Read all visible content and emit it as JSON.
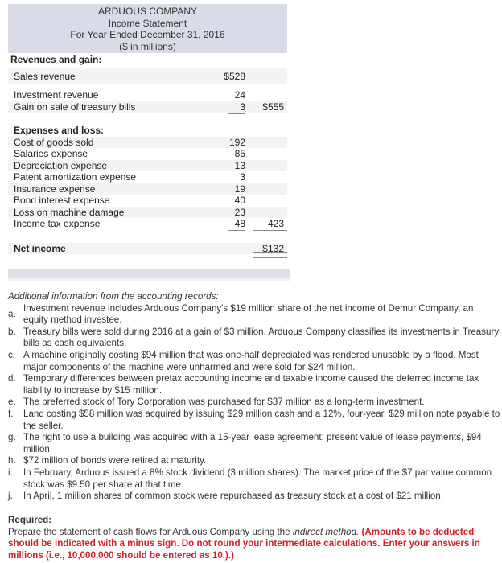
{
  "statement": {
    "company": "ARDUOUS COMPANY",
    "title": "Income Statement",
    "period": "For Year Ended December 31, 2016",
    "units": "($ in millions)",
    "revenues_heading": "Revenues and gain:",
    "revenues": [
      {
        "label": "Sales revenue",
        "v1": "$528",
        "v2": ""
      },
      {
        "label": "Investment revenue",
        "v1": "24",
        "v2": ""
      },
      {
        "label": "Gain on sale of treasury bills",
        "v1": "3",
        "v2": "$555"
      }
    ],
    "expenses_heading": "Expenses and loss:",
    "expenses": [
      {
        "label": "Cost of goods sold",
        "v1": "192",
        "v2": ""
      },
      {
        "label": "Salaries expense",
        "v1": "85",
        "v2": ""
      },
      {
        "label": "Depreciation expense",
        "v1": "13",
        "v2": ""
      },
      {
        "label": "Patent amortization expense",
        "v1": "3",
        "v2": ""
      },
      {
        "label": "Insurance expense",
        "v1": "19",
        "v2": ""
      },
      {
        "label": "Bond interest expense",
        "v1": "40",
        "v2": ""
      },
      {
        "label": "Loss on machine damage",
        "v1": "23",
        "v2": ""
      },
      {
        "label": "Income tax expense",
        "v1": "48",
        "v2": "423"
      }
    ],
    "net_income_label": "Net income",
    "net_income_value": "$132"
  },
  "additional": {
    "title": "Additional information from the accounting records:",
    "items": [
      {
        "letter": "a.",
        "text": "Investment revenue includes Arduous Company's $19 million share of the net income of Demur Company, an equity method investee."
      },
      {
        "letter": "b.",
        "text": "Treasury bills were sold during 2016 at a gain of $3 million. Arduous Company classifies its investments in Treasury bills as cash equivalents."
      },
      {
        "letter": "c.",
        "text": "A machine originally costing $94 million that was one-half depreciated was rendered unusable by a flood. Most major components of the machine were unharmed and were sold for $24 million."
      },
      {
        "letter": "d.",
        "text": "Temporary differences between pretax accounting income and taxable income caused the deferred income tax liability to increase by $15 million."
      },
      {
        "letter": "e.",
        "text": "The preferred stock of Tory Corporation was purchased for $37 million as a long-term investment."
      },
      {
        "letter": "f.",
        "text": "Land costing $58 million was acquired by issuing $29 million cash and a 12%, four-year, $29 million note payable to the seller."
      },
      {
        "letter": "g.",
        "text": "The right to use a building was acquired with a 15-year lease agreement; present value of lease payments, $94 million."
      },
      {
        "letter": "h.",
        "text": "$72 million of bonds were retired at maturity."
      },
      {
        "letter": "i.",
        "text": "In February, Arduous issued a 8% stock dividend (3 million shares). The market price of the $7 par value common stock was $9.50 per share at that time."
      },
      {
        "letter": "j.",
        "text": "In April, 1 million shares of common stock were repurchased as treasury stock at a cost of $21 million."
      }
    ]
  },
  "required": {
    "heading": "Required:",
    "text_before": "Prepare the statement of cash flows for Arduous Company using the ",
    "method": "indirect method.",
    "instructions": " (Amounts to be deducted should be indicated with a minus sign. Do not round your intermediate calculations. Enter your answers in millions (i.e., 10,000,000 should be entered as 10.).)"
  }
}
